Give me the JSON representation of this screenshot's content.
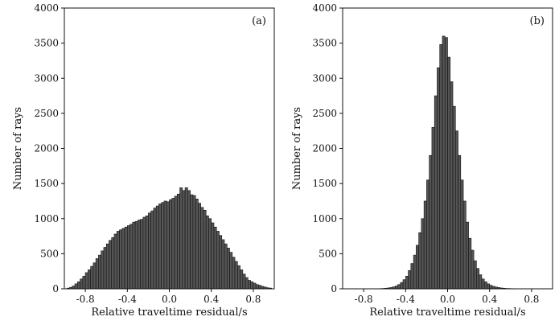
{
  "chart_data": [
    {
      "type": "bar",
      "panel_label": "(a)",
      "xlabel": "Relative traveltime residual/s",
      "ylabel": "Number of rays",
      "xlim": [
        -1.0,
        1.0
      ],
      "ylim": [
        0,
        4000
      ],
      "xticks": [
        -0.8,
        -0.4,
        0.0,
        0.4,
        0.8
      ],
      "xtick_labels": [
        "-0.8",
        "-0.4",
        "0.0",
        "0.4",
        "0.8"
      ],
      "yticks": [
        0,
        500,
        1000,
        1500,
        2000,
        2500,
        3000,
        3500,
        4000
      ],
      "ytick_labels": [
        "0",
        "500",
        "1000",
        "1500",
        "2000",
        "2500",
        "3000",
        "3500",
        "4000"
      ],
      "bin_width": 0.025,
      "x": [
        -0.9625,
        -0.9375,
        -0.9125,
        -0.8875,
        -0.8625,
        -0.8375,
        -0.8125,
        -0.7875,
        -0.7625,
        -0.7375,
        -0.7125,
        -0.6875,
        -0.6625,
        -0.6375,
        -0.6125,
        -0.5875,
        -0.5625,
        -0.5375,
        -0.5125,
        -0.4875,
        -0.4625,
        -0.4375,
        -0.4125,
        -0.3875,
        -0.3625,
        -0.3375,
        -0.3125,
        -0.2875,
        -0.2625,
        -0.2375,
        -0.2125,
        -0.1875,
        -0.1625,
        -0.1375,
        -0.1125,
        -0.0875,
        -0.0625,
        -0.0375,
        -0.0125,
        0.0125,
        0.0375,
        0.0625,
        0.0875,
        0.1125,
        0.1375,
        0.1625,
        0.1875,
        0.2125,
        0.2375,
        0.2625,
        0.2875,
        0.3125,
        0.3375,
        0.3625,
        0.3875,
        0.4125,
        0.4375,
        0.4625,
        0.4875,
        0.5125,
        0.5375,
        0.5625,
        0.5875,
        0.6125,
        0.6375,
        0.6625,
        0.6875,
        0.7125,
        0.7375,
        0.7625,
        0.7875,
        0.8125,
        0.8375,
        0.8625,
        0.8875,
        0.9125,
        0.9375,
        0.9625
      ],
      "values": [
        10,
        20,
        40,
        70,
        100,
        140,
        180,
        230,
        270,
        320,
        370,
        430,
        480,
        540,
        590,
        640,
        690,
        730,
        780,
        820,
        840,
        860,
        880,
        900,
        920,
        950,
        960,
        980,
        990,
        1020,
        1040,
        1080,
        1110,
        1150,
        1180,
        1210,
        1230,
        1250,
        1240,
        1270,
        1290,
        1320,
        1350,
        1440,
        1400,
        1440,
        1400,
        1340,
        1330,
        1280,
        1220,
        1160,
        1120,
        1040,
        1000,
        940,
        880,
        820,
        760,
        700,
        640,
        580,
        520,
        450,
        390,
        330,
        270,
        210,
        160,
        120,
        100,
        80,
        60,
        50,
        35,
        25,
        15,
        10
      ]
    },
    {
      "type": "bar",
      "panel_label": "(b)",
      "xlabel": "Relative traveltime residual/s",
      "ylabel": "Number of rays",
      "xlim": [
        -1.0,
        1.0
      ],
      "ylim": [
        0,
        4000
      ],
      "xticks": [
        -0.8,
        -0.4,
        0.0,
        0.4,
        0.8
      ],
      "xtick_labels": [
        "-0.8",
        "-0.4",
        "0.0",
        "0.4",
        "0.8"
      ],
      "yticks": [
        0,
        500,
        1000,
        1500,
        2000,
        2500,
        3000,
        3500,
        4000
      ],
      "ytick_labels": [
        "0",
        "500",
        "1000",
        "1500",
        "2000",
        "2500",
        "3000",
        "3500",
        "4000"
      ],
      "bin_width": 0.025,
      "x": [
        -0.6625,
        -0.6375,
        -0.6125,
        -0.5875,
        -0.5625,
        -0.5375,
        -0.5125,
        -0.4875,
        -0.4625,
        -0.4375,
        -0.4125,
        -0.3875,
        -0.3625,
        -0.3375,
        -0.3125,
        -0.2875,
        -0.2625,
        -0.2375,
        -0.2125,
        -0.1875,
        -0.1625,
        -0.1375,
        -0.1125,
        -0.0875,
        -0.0625,
        -0.0375,
        -0.0125,
        0.0125,
        0.0375,
        0.0625,
        0.0875,
        0.1125,
        0.1375,
        0.1625,
        0.1875,
        0.2125,
        0.2375,
        0.2625,
        0.2875,
        0.3125,
        0.3375,
        0.3625,
        0.3875,
        0.4125,
        0.4375,
        0.4625,
        0.4875,
        0.5125,
        0.5375,
        0.5625,
        0.5875,
        0.6125,
        0.6375,
        0.6625
      ],
      "values": [
        2,
        3,
        5,
        8,
        12,
        18,
        28,
        40,
        60,
        90,
        130,
        180,
        260,
        360,
        480,
        620,
        800,
        1000,
        1250,
        1550,
        1900,
        2300,
        2750,
        3150,
        3480,
        3600,
        3580,
        3300,
        2950,
        2600,
        2250,
        1900,
        1550,
        1250,
        950,
        720,
        550,
        400,
        290,
        200,
        140,
        100,
        70,
        50,
        35,
        25,
        18,
        12,
        8,
        5,
        4,
        3,
        2,
        1
      ]
    }
  ]
}
